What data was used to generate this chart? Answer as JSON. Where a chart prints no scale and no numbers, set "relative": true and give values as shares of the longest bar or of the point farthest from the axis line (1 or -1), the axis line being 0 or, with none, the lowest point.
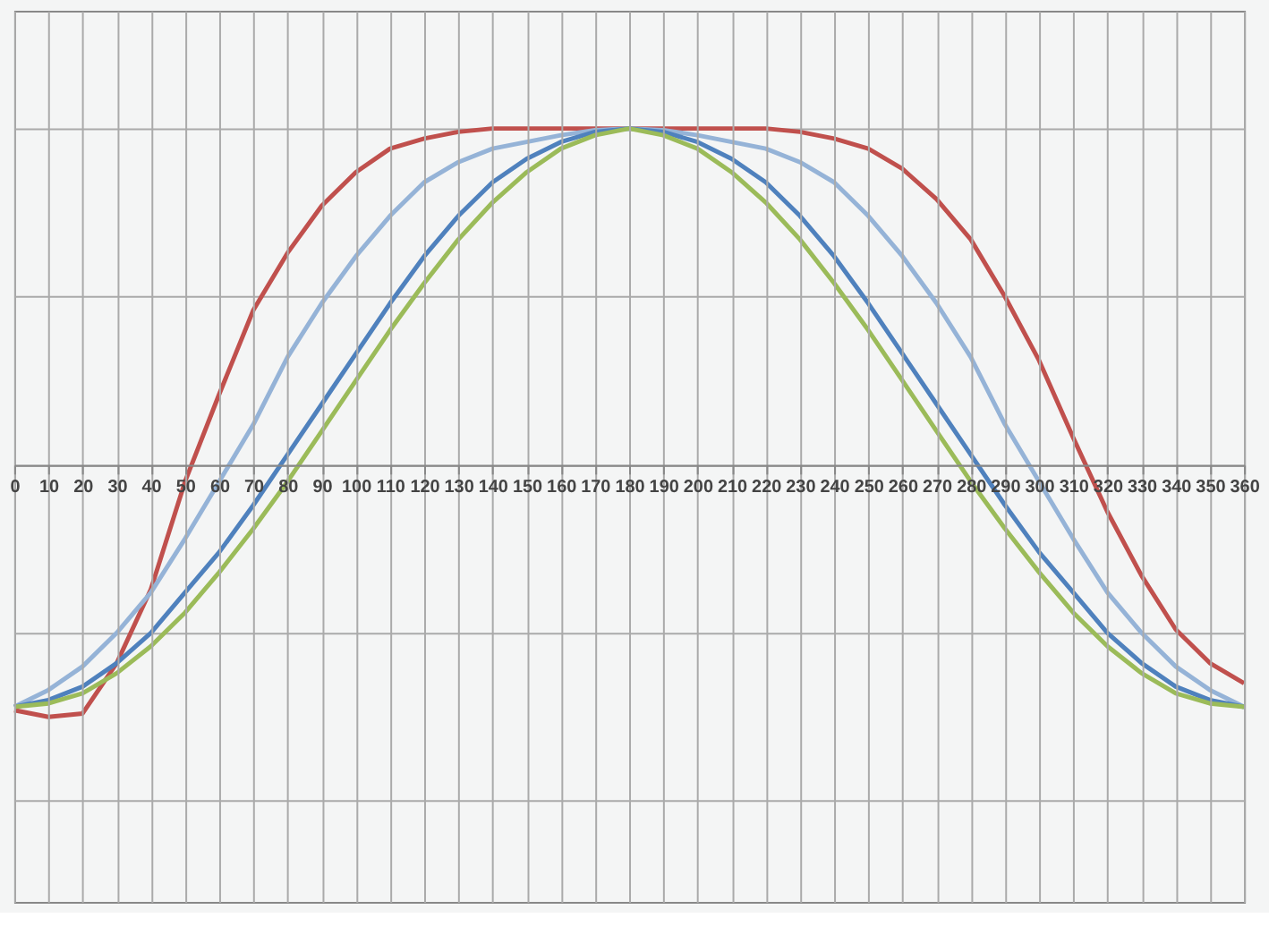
{
  "chart_data": {
    "type": "line",
    "relative": true,
    "grid": true,
    "legend": false,
    "marker": "none",
    "line_style": "solid",
    "x": [
      0,
      10,
      20,
      30,
      40,
      50,
      60,
      70,
      80,
      90,
      100,
      110,
      120,
      130,
      140,
      150,
      160,
      170,
      180,
      190,
      200,
      210,
      220,
      230,
      240,
      250,
      260,
      270,
      280,
      290,
      300,
      310,
      320,
      330,
      340,
      350,
      360
    ],
    "xlim": [
      0,
      360
    ],
    "xticks": [
      0,
      10,
      20,
      30,
      40,
      50,
      60,
      70,
      80,
      90,
      100,
      110,
      120,
      130,
      140,
      150,
      160,
      170,
      180,
      190,
      200,
      210,
      220,
      230,
      240,
      250,
      260,
      270,
      280,
      290,
      300,
      310,
      320,
      330,
      340,
      350,
      360
    ],
    "series": [
      {
        "color": "#c0504d",
        "values": [
          -0.73,
          -0.75,
          -0.74,
          -0.59,
          -0.37,
          -0.05,
          0.21,
          0.46,
          0.63,
          0.77,
          0.87,
          0.94,
          0.97,
          0.99,
          1,
          1,
          1,
          1,
          1,
          1,
          1,
          1,
          1,
          0.99,
          0.97,
          0.94,
          0.88,
          0.79,
          0.67,
          0.5,
          0.31,
          0.08,
          -0.14,
          -0.33,
          -0.49,
          -0.59,
          -0.65
        ]
      },
      {
        "color": "#95b3d7",
        "values": [
          -0.72,
          -0.67,
          -0.6,
          -0.5,
          -0.38,
          -0.22,
          -0.05,
          0.12,
          0.32,
          0.48,
          0.62,
          0.74,
          0.84,
          0.9,
          0.94,
          0.96,
          0.98,
          0.995,
          1,
          0.995,
          0.98,
          0.96,
          0.94,
          0.9,
          0.84,
          0.74,
          0.62,
          0.48,
          0.32,
          0.12,
          -0.05,
          -0.22,
          -0.38,
          -0.5,
          -0.6,
          -0.67,
          -0.72
        ]
      },
      {
        "color": "#4f81bd",
        "values": [
          -0.72,
          -0.7,
          -0.66,
          -0.59,
          -0.5,
          -0.38,
          -0.26,
          -0.12,
          0.03,
          0.18,
          0.33,
          0.48,
          0.62,
          0.74,
          0.84,
          0.91,
          0.96,
          0.99,
          1,
          0.99,
          0.96,
          0.91,
          0.84,
          0.74,
          0.62,
          0.48,
          0.33,
          0.18,
          0.03,
          -0.12,
          -0.26,
          -0.38,
          -0.5,
          -0.59,
          -0.66,
          -0.7,
          -0.72
        ]
      },
      {
        "color": "#9bbb59",
        "values": [
          -0.72,
          -0.71,
          -0.68,
          -0.62,
          -0.54,
          -0.44,
          -0.32,
          -0.19,
          -0.05,
          0.1,
          0.25,
          0.4,
          0.54,
          0.67,
          0.78,
          0.87,
          0.94,
          0.98,
          1,
          0.98,
          0.94,
          0.87,
          0.78,
          0.67,
          0.54,
          0.4,
          0.25,
          0.1,
          -0.05,
          -0.19,
          -0.32,
          -0.44,
          -0.54,
          -0.62,
          -0.68,
          -0.71,
          -0.72
        ]
      }
    ]
  }
}
